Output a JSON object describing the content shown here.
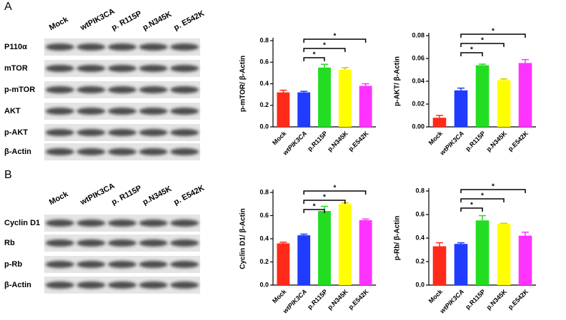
{
  "blots": [
    {
      "panel": "A",
      "lanes": [
        "Mock",
        "wtPIK3CA",
        "p. R115P",
        "p.N345K",
        "p. E542K"
      ],
      "rows": [
        "P110α",
        "mTOR",
        "p-mTOR",
        "AKT",
        "p-AKT",
        "β-Actin"
      ]
    },
    {
      "panel": "B",
      "lanes": [
        "Mock",
        "wtPIK3CA",
        "p. R115P",
        "p.N345K",
        "p. E542K"
      ],
      "rows": [
        "Cyclin D1",
        "Rb",
        "p-Rb",
        "β-Actin"
      ]
    }
  ],
  "chart_data": [
    {
      "type": "bar",
      "y_label": "p-mTOR/ β-Actin",
      "categories": [
        "Mock",
        "wtPIK3CA",
        "p.R115P",
        "p.N345K",
        "p.E542K"
      ],
      "values": [
        0.32,
        0.32,
        0.55,
        0.53,
        0.38
      ],
      "errors": [
        0.02,
        0.01,
        0.03,
        0.02,
        0.02
      ],
      "colors": [
        "#ff2a1a",
        "#1f3cff",
        "#22dd22",
        "#ffff00",
        "#ff33ff"
      ],
      "ylim": [
        0,
        0.8
      ],
      "yticks": [
        {
          "value": 0,
          "label": "0.0"
        },
        0.2,
        0.4,
        0.6,
        0.8
      ],
      "significance": [
        {
          "from": 1,
          "to": 2,
          "label": "*"
        },
        {
          "from": 1,
          "to": 3,
          "label": "*"
        },
        {
          "from": 1,
          "to": 4,
          "label": "*"
        }
      ]
    },
    {
      "type": "bar",
      "y_label": "p-AKT/ β-Actin",
      "categories": [
        "Mock",
        "wtPIK3CA",
        "p.R115P",
        "p.N345K",
        "p.E542K"
      ],
      "values": [
        0.008,
        0.032,
        0.054,
        0.041,
        0.056
      ],
      "errors": [
        0.002,
        0.002,
        0.001,
        0.001,
        0.003
      ],
      "colors": [
        "#ff2a1a",
        "#1f3cff",
        "#22dd22",
        "#ffff00",
        "#ff33ff"
      ],
      "ylim": [
        0,
        0.08
      ],
      "yticks": [
        {
          "value": 0,
          "label": "0.00"
        },
        0.02,
        0.04,
        0.06,
        0.08
      ],
      "significance": [
        {
          "from": 1,
          "to": 2,
          "label": "*"
        },
        {
          "from": 1,
          "to": 3,
          "label": "*"
        },
        {
          "from": 1,
          "to": 4,
          "label": "*"
        }
      ]
    },
    {
      "type": "bar",
      "y_label": "Cyclin D1/ β-Actin",
      "categories": [
        "Mock",
        "wtPIK3CA",
        "p.R115P",
        "p.N345K",
        "p.E542K"
      ],
      "values": [
        0.36,
        0.43,
        0.64,
        0.7,
        0.56
      ],
      "errors": [
        0.01,
        0.01,
        0.04,
        0.01,
        0.01
      ],
      "colors": [
        "#ff2a1a",
        "#1f3cff",
        "#22dd22",
        "#ffff00",
        "#ff33ff"
      ],
      "ylim": [
        0,
        0.8
      ],
      "yticks": [
        {
          "value": 0,
          "label": "0.0"
        },
        0.2,
        0.4,
        0.6,
        0.8
      ],
      "significance": [
        {
          "from": 1,
          "to": 2,
          "label": "*"
        },
        {
          "from": 1,
          "to": 3,
          "label": "*"
        },
        {
          "from": 1,
          "to": 4,
          "label": "*"
        }
      ]
    },
    {
      "type": "bar",
      "y_label": "p-Rb/ β-Actin",
      "categories": [
        "Mock",
        "wtPIK3CA",
        "p.R115P",
        "p.N345K",
        "p.E542K"
      ],
      "values": [
        0.33,
        0.35,
        0.55,
        0.52,
        0.42
      ],
      "errors": [
        0.03,
        0.01,
        0.04,
        0.005,
        0.03
      ],
      "colors": [
        "#ff2a1a",
        "#1f3cff",
        "#22dd22",
        "#ffff00",
        "#ff33ff"
      ],
      "ylim": [
        0,
        0.8
      ],
      "yticks": [
        {
          "value": 0,
          "label": "0.0"
        },
        0.2,
        0.4,
        0.6,
        0.8
      ],
      "significance": [
        {
          "from": 1,
          "to": 2,
          "label": "*"
        },
        {
          "from": 1,
          "to": 3,
          "label": "*"
        },
        {
          "from": 1,
          "to": 4,
          "label": "*"
        }
      ]
    }
  ]
}
